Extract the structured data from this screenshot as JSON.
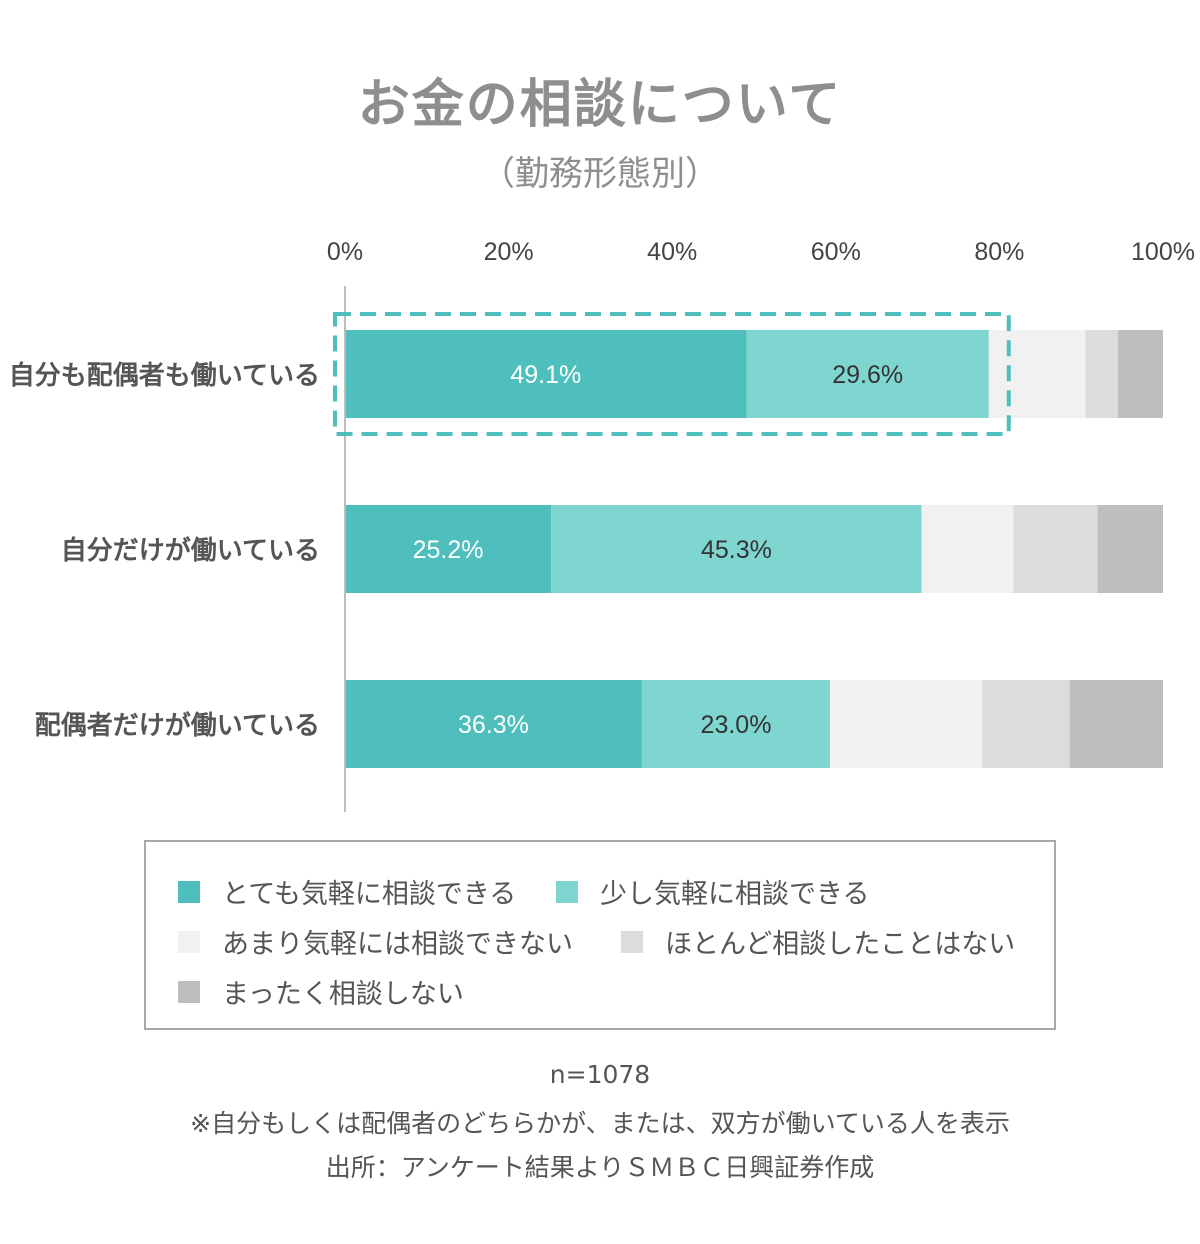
{
  "title": "お金の相談について",
  "subtitle": "（勤務形態別）",
  "chart_data": {
    "type": "bar",
    "orientation": "horizontal",
    "stacked": true,
    "title": "お金の相談について",
    "subtitle": "（勤務形態別）",
    "x_ticks": [
      "0%",
      "20%",
      "40%",
      "60%",
      "80%",
      "100%"
    ],
    "xlim": [
      0,
      100
    ],
    "categories": [
      "自分も配偶者も働いている",
      "自分だけが働いている",
      "配偶者だけが働いている"
    ],
    "series": [
      {
        "name": "とても気軽に相談できる",
        "color": "#4ebfbd",
        "values": [
          49.1,
          25.2,
          36.3
        ],
        "labels": [
          "49.1%",
          "25.2%",
          "36.3%"
        ],
        "label_color": "#ffffff"
      },
      {
        "name": "少し気軽に相談できる",
        "color": "#7fd5d0",
        "values": [
          29.6,
          45.3,
          23.0
        ],
        "labels": [
          "29.6%",
          "45.3%",
          "23.0%"
        ],
        "label_color": "#333333"
      },
      {
        "name": "あまり気軽には相談できない",
        "color": "#f1f1f1",
        "values": [
          11.8,
          11.2,
          18.6
        ]
      },
      {
        "name": "ほとんど相談したことはない",
        "color": "#dcdcdc",
        "values": [
          4.0,
          10.3,
          10.7
        ]
      },
      {
        "name": "まったく相談しない",
        "color": "#bebebe",
        "values": [
          5.5,
          8.0,
          11.4
        ]
      }
    ],
    "highlight": {
      "category": "自分も配偶者も働いている",
      "series": [
        "とても気軽に相談できる",
        "少し気軽に相談できる"
      ],
      "color": "#4ebfbd",
      "style": "dashed"
    },
    "legend": "bottom"
  },
  "legend": {
    "items": [
      {
        "label": "とても気軽に相談できる",
        "color": "#4ebfbd"
      },
      {
        "label": "少し気軽に相談できる",
        "color": "#7fd5d0"
      },
      {
        "label": "あまり気軽には相談できない",
        "color": "#f1f1f1"
      },
      {
        "label": "ほとんど相談したことはない",
        "color": "#dcdcdc"
      },
      {
        "label": "まったく相談しない",
        "color": "#bebebe"
      }
    ]
  },
  "notes": {
    "n": "n=1078",
    "remark": "※自分もしくは配偶者のどちらかが、または、双方が働いている人を表示",
    "source": "出所：アンケート結果よりＳＭＢＣ日興証券作成"
  }
}
